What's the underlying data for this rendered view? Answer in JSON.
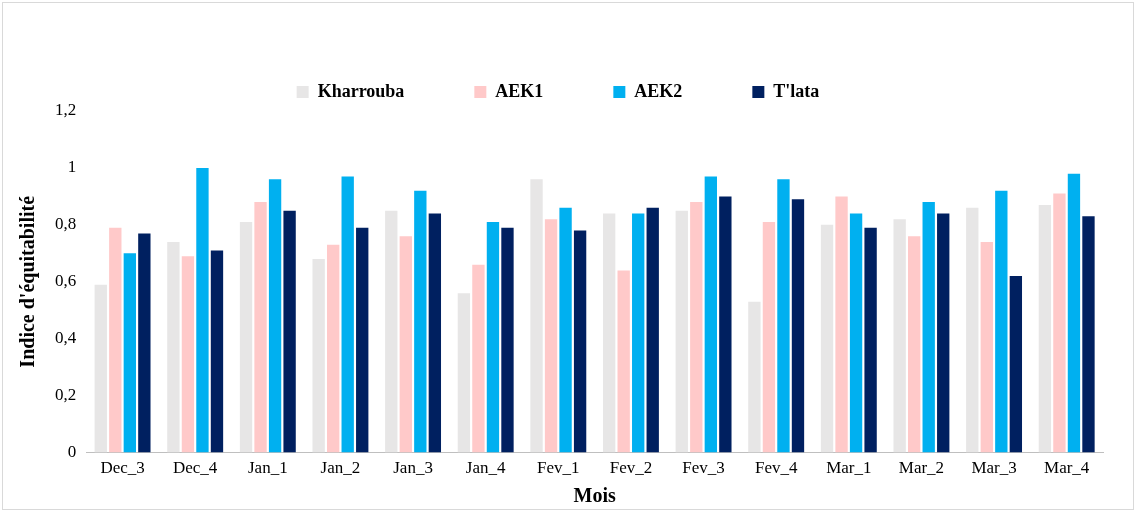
{
  "chart_data": {
    "type": "bar",
    "xlabel": "Mois",
    "ylabel": "Indice d'équitabilité",
    "categories": [
      "Dec_3",
      "Dec_4",
      "Jan_1",
      "Jan_2",
      "Jan_3",
      "Jan_4",
      "Fev_1",
      "Fev_2",
      "Fev_3",
      "Fev_4",
      "Mar_1",
      "Mar_2",
      "Mar_3",
      "Mar_4"
    ],
    "series": [
      {
        "name": "Kharrouba",
        "color": "#e7e6e6",
        "values": [
          0.59,
          0.74,
          0.81,
          0.68,
          0.85,
          0.56,
          0.96,
          0.84,
          0.85,
          0.53,
          0.8,
          0.82,
          0.86,
          0.87
        ]
      },
      {
        "name": "AEK1",
        "color": "#ffc9c9",
        "values": [
          0.79,
          0.69,
          0.88,
          0.73,
          0.76,
          0.66,
          0.82,
          0.64,
          0.88,
          0.81,
          0.9,
          0.76,
          0.74,
          0.91
        ]
      },
      {
        "name": "AEK2",
        "color": "#00b0f0",
        "values": [
          0.7,
          1.0,
          0.96,
          0.97,
          0.92,
          0.81,
          0.86,
          0.84,
          0.97,
          0.96,
          0.84,
          0.88,
          0.92,
          0.98
        ]
      },
      {
        "name": "T'lata",
        "color": "#002060",
        "values": [
          0.77,
          0.71,
          0.85,
          0.79,
          0.84,
          0.79,
          0.78,
          0.86,
          0.9,
          0.89,
          0.79,
          0.84,
          0.62,
          0.83
        ]
      }
    ],
    "ylim": [
      0,
      1.2
    ],
    "yticks": [
      0,
      {
        "value": 0.2,
        "label": "0,2"
      },
      {
        "value": 0.4,
        "label": "0,4"
      },
      {
        "value": 0.6,
        "label": "0,6"
      },
      {
        "value": 0.8,
        "label": "0,8"
      },
      1,
      {
        "value": 1.2,
        "label": "1,2"
      }
    ],
    "grid": false,
    "legend": "top"
  }
}
